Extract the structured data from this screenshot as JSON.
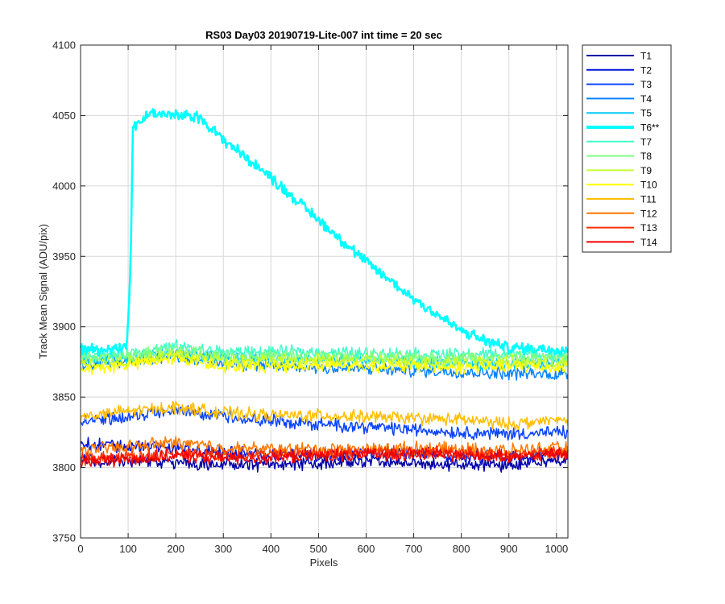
{
  "chart_data": {
    "type": "line",
    "title": "RS03 Day03 20190719-Lite-007 int time = 20 sec",
    "xlabel": "Pixels",
    "ylabel": "Track Mean Signal (ADU/pix)",
    "xlim": [
      0,
      1024
    ],
    "ylim": [
      3750,
      4100
    ],
    "xticks": [
      0,
      100,
      200,
      300,
      400,
      500,
      600,
      700,
      800,
      900,
      1000
    ],
    "yticks": [
      3750,
      3800,
      3850,
      3900,
      3950,
      4000,
      4050,
      4100
    ],
    "grid": true,
    "legend_position": "outside-top-right",
    "series": [
      {
        "name": "T1",
        "color": "#0000a8",
        "highlight": false,
        "x": [
          0,
          100,
          200,
          300,
          400,
          500,
          600,
          700,
          800,
          900,
          1024
        ],
        "y": [
          3805,
          3804,
          3803,
          3802,
          3802,
          3803,
          3804,
          3803,
          3802,
          3802,
          3806
        ]
      },
      {
        "name": "T2",
        "color": "#0014dc",
        "highlight": false,
        "x": [
          0,
          100,
          200,
          300,
          400,
          500,
          600,
          700,
          800,
          900,
          1024
        ],
        "y": [
          3817,
          3815,
          3814,
          3811,
          3809,
          3809,
          3810,
          3810,
          3808,
          3807,
          3810
        ]
      },
      {
        "name": "T3",
        "color": "#0a44ff",
        "highlight": false,
        "x": [
          0,
          100,
          200,
          300,
          400,
          500,
          600,
          700,
          800,
          900,
          1024
        ],
        "y": [
          3833,
          3836,
          3840,
          3837,
          3833,
          3831,
          3829,
          3827,
          3825,
          3824,
          3825
        ]
      },
      {
        "name": "T4",
        "color": "#0a82ff",
        "highlight": false,
        "x": [
          0,
          100,
          200,
          300,
          400,
          500,
          600,
          700,
          800,
          900,
          1024
        ],
        "y": [
          3872,
          3875,
          3880,
          3874,
          3872,
          3871,
          3870,
          3869,
          3868,
          3867,
          3866
        ]
      },
      {
        "name": "T5",
        "color": "#00c8ff",
        "highlight": false,
        "x": [
          0,
          100,
          200,
          300,
          400,
          500,
          600,
          700,
          800,
          900,
          1024
        ],
        "y": [
          3877,
          3878,
          3881,
          3878,
          3877,
          3876,
          3876,
          3875,
          3874,
          3873,
          3874
        ]
      },
      {
        "name": "T6**",
        "color": "#00ffff",
        "highlight": true,
        "x": [
          0,
          50,
          97,
          105,
          110,
          150,
          200,
          250,
          300,
          400,
          500,
          600,
          700,
          800,
          850,
          900,
          1024
        ],
        "y": [
          3884,
          3884,
          3886,
          3940,
          4042,
          4052,
          4050,
          4049,
          4033,
          4006,
          3976,
          3946,
          3920,
          3897,
          3890,
          3885,
          3884
        ]
      },
      {
        "name": "T7",
        "color": "#40ffc8",
        "highlight": false,
        "x": [
          0,
          100,
          200,
          300,
          400,
          500,
          600,
          700,
          800,
          900,
          1024
        ],
        "y": [
          3881,
          3881,
          3886,
          3882,
          3882,
          3882,
          3881,
          3881,
          3880,
          3881,
          3880
        ]
      },
      {
        "name": "T8",
        "color": "#80ff80",
        "highlight": false,
        "x": [
          0,
          100,
          200,
          300,
          400,
          500,
          600,
          700,
          800,
          900,
          1024
        ],
        "y": [
          3878,
          3879,
          3884,
          3879,
          3879,
          3879,
          3878,
          3878,
          3878,
          3878,
          3877
        ]
      },
      {
        "name": "T9",
        "color": "#c8ff30",
        "highlight": false,
        "x": [
          0,
          100,
          200,
          300,
          400,
          500,
          600,
          700,
          800,
          900,
          1024
        ],
        "y": [
          3874,
          3876,
          3881,
          3876,
          3876,
          3876,
          3876,
          3875,
          3875,
          3875,
          3874
        ]
      },
      {
        "name": "T10",
        "color": "#ffff00",
        "highlight": false,
        "x": [
          0,
          100,
          200,
          300,
          400,
          500,
          600,
          700,
          800,
          900,
          1024
        ],
        "y": [
          3869,
          3873,
          3878,
          3872,
          3872,
          3873,
          3872,
          3872,
          3871,
          3872,
          3871
        ]
      },
      {
        "name": "T11",
        "color": "#ffbe00",
        "highlight": false,
        "x": [
          0,
          100,
          200,
          300,
          400,
          500,
          600,
          700,
          800,
          900,
          1024
        ],
        "y": [
          3836,
          3840,
          3843,
          3839,
          3837,
          3837,
          3836,
          3835,
          3834,
          3831,
          3834
        ]
      },
      {
        "name": "T12",
        "color": "#ff7800",
        "highlight": false,
        "x": [
          0,
          100,
          200,
          300,
          400,
          500,
          600,
          700,
          800,
          900,
          1024
        ],
        "y": [
          3812,
          3815,
          3818,
          3814,
          3813,
          3813,
          3813,
          3814,
          3813,
          3812,
          3814
        ]
      },
      {
        "name": "T13",
        "color": "#ff3000",
        "highlight": false,
        "x": [
          0,
          100,
          200,
          300,
          400,
          500,
          600,
          700,
          800,
          900,
          1024
        ],
        "y": [
          3806,
          3808,
          3810,
          3809,
          3809,
          3810,
          3811,
          3811,
          3810,
          3809,
          3811
        ]
      },
      {
        "name": "T14",
        "color": "#f00000",
        "highlight": false,
        "x": [
          0,
          100,
          200,
          300,
          400,
          500,
          600,
          700,
          800,
          900,
          1024
        ],
        "y": [
          3804,
          3806,
          3808,
          3807,
          3807,
          3808,
          3809,
          3810,
          3809,
          3808,
          3810
        ]
      }
    ]
  }
}
